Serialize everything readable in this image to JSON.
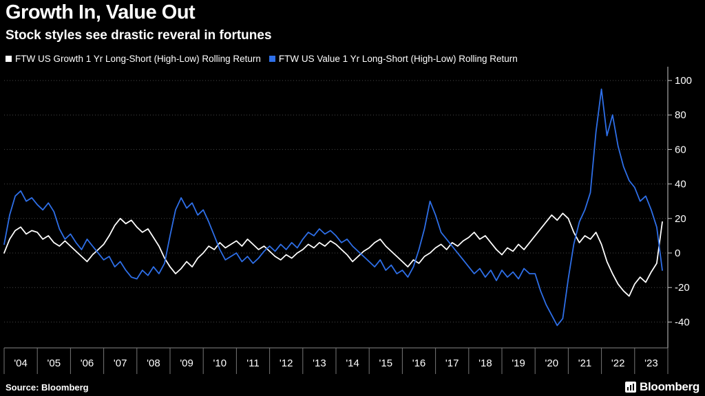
{
  "title": "Growth In, Value Out",
  "subtitle": "Stock styles see drastic reveral in fortunes",
  "source": "Source: Bloomberg",
  "logo": "Bloomberg",
  "legend": [
    {
      "key": "growth",
      "label": "FTW US Growth 1 Yr Long-Short (High-Low) Rolling Return",
      "color": "#ffffff"
    },
    {
      "key": "value",
      "label": "FTW US Value 1 Yr Long-Short (High-Low) Rolling Return",
      "color": "#2e6fe8"
    }
  ],
  "chart_data": {
    "type": "line",
    "title": "Growth In, Value Out",
    "subtitle": "Stock styles see drastic reveral in fortunes",
    "x_labels": [
      "'04",
      "'05",
      "'06",
      "'07",
      "'08",
      "'09",
      "'10",
      "'11",
      "'12",
      "'13",
      "'14",
      "'15",
      "'16",
      "'17",
      "'18",
      "'19",
      "'20",
      "'21",
      "'22",
      "'23"
    ],
    "points_per_year": 6,
    "yticks": [
      100,
      80,
      60,
      40,
      20,
      0,
      -20,
      -40
    ],
    "ylim": [
      -55,
      106
    ],
    "grid": "dotted-horizontal",
    "y_axis_side": "right",
    "colors": {
      "background": "#000000",
      "grid": "#4a4a4a",
      "axis": "#cccccc",
      "x_axis": "#888888",
      "x_sep": "#777777",
      "label": "#ffffff"
    },
    "series": [
      {
        "name": "FTW US Growth 1 Yr Long-Short (High-Low) Rolling Return",
        "key": "growth",
        "color": "#ffffff",
        "values": [
          0,
          8,
          13,
          15,
          11,
          13,
          12,
          8,
          10,
          6,
          4,
          7,
          4,
          1,
          -2,
          -5,
          -1,
          2,
          5,
          10,
          16,
          20,
          17,
          19,
          15,
          12,
          14,
          9,
          4,
          -3,
          -8,
          -12,
          -9,
          -5,
          -8,
          -3,
          0,
          4,
          2,
          6,
          3,
          5,
          7,
          4,
          8,
          5,
          2,
          4,
          1,
          -2,
          -4,
          -1,
          -3,
          0,
          2,
          5,
          3,
          6,
          4,
          7,
          5,
          2,
          -1,
          -5,
          -2,
          1,
          3,
          6,
          8,
          4,
          1,
          -2,
          -5,
          -8,
          -4,
          -6,
          -2,
          0,
          3,
          5,
          2,
          6,
          4,
          7,
          9,
          12,
          8,
          10,
          6,
          2,
          -1,
          3,
          1,
          5,
          2,
          6,
          10,
          14,
          18,
          22,
          19,
          23,
          20,
          12,
          6,
          10,
          8,
          12,
          5,
          -5,
          -12,
          -18,
          -22,
          -25,
          -18,
          -14,
          -17,
          -11,
          -6,
          18
        ]
      },
      {
        "name": "FTW US Value 1 Yr Long-Short (High-Low) Rolling Return",
        "key": "value",
        "color": "#2e6fe8",
        "values": [
          5,
          22,
          33,
          36,
          30,
          32,
          28,
          25,
          29,
          24,
          14,
          8,
          11,
          6,
          2,
          8,
          4,
          0,
          -4,
          -2,
          -8,
          -5,
          -10,
          -14,
          -15,
          -10,
          -13,
          -8,
          -12,
          -6,
          10,
          25,
          32,
          26,
          29,
          22,
          25,
          18,
          10,
          2,
          -4,
          -2,
          0,
          -5,
          -2,
          -6,
          -3,
          1,
          4,
          1,
          5,
          2,
          6,
          3,
          8,
          12,
          10,
          14,
          11,
          13,
          10,
          6,
          8,
          4,
          1,
          -2,
          -5,
          -8,
          -4,
          -10,
          -7,
          -12,
          -10,
          -14,
          -8,
          2,
          14,
          30,
          22,
          12,
          8,
          4,
          0,
          -4,
          -8,
          -12,
          -9,
          -14,
          -10,
          -16,
          -10,
          -14,
          -11,
          -15,
          -9,
          -12,
          -12,
          -22,
          -30,
          -36,
          -42,
          -38,
          -15,
          5,
          18,
          25,
          35,
          70,
          95,
          68,
          80,
          62,
          50,
          42,
          38,
          30,
          33,
          25,
          15,
          -10
        ]
      }
    ]
  }
}
